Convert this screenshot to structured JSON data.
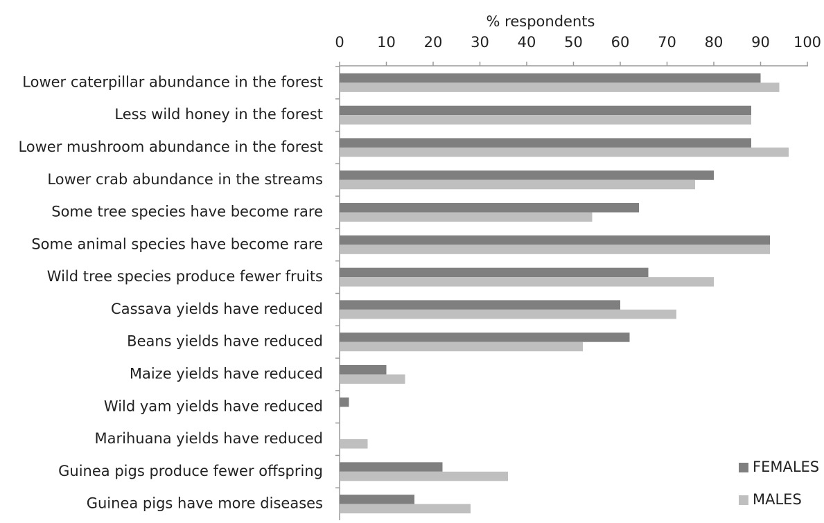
{
  "chart_data": {
    "type": "hbar",
    "x_label": "% respondents",
    "categories": [
      "Lower caterpillar abundance in the forest",
      "Less wild honey in the forest",
      "Lower mushroom abundance in the forest",
      "Lower crab abundance in the streams",
      "Some tree species have become rare",
      "Some animal species have become rare",
      "Wild tree species produce fewer fruits",
      "Cassava yields have reduced",
      "Beans yields have reduced",
      "Maize yields have reduced",
      "Wild yam yields have reduced",
      "Marihuana yields have reduced",
      "Guinea pigs produce fewer offspring",
      "Guinea pigs have more diseases"
    ],
    "series": [
      {
        "name": "FEMALES",
        "color": "#7f7f7f",
        "values": [
          90,
          88,
          88,
          80,
          64,
          92,
          66,
          60,
          62,
          10,
          2,
          0,
          22,
          16
        ]
      },
      {
        "name": "MALES",
        "color": "#bfbfbf",
        "values": [
          94,
          88,
          96,
          76,
          54,
          92,
          80,
          72,
          52,
          14,
          0,
          6,
          36,
          28
        ]
      }
    ],
    "xlim": [
      0,
      100
    ],
    "xticks": [
      0,
      10,
      20,
      30,
      40,
      50,
      60,
      70,
      80,
      90,
      100
    ],
    "legend": "lower right",
    "grid": false
  }
}
